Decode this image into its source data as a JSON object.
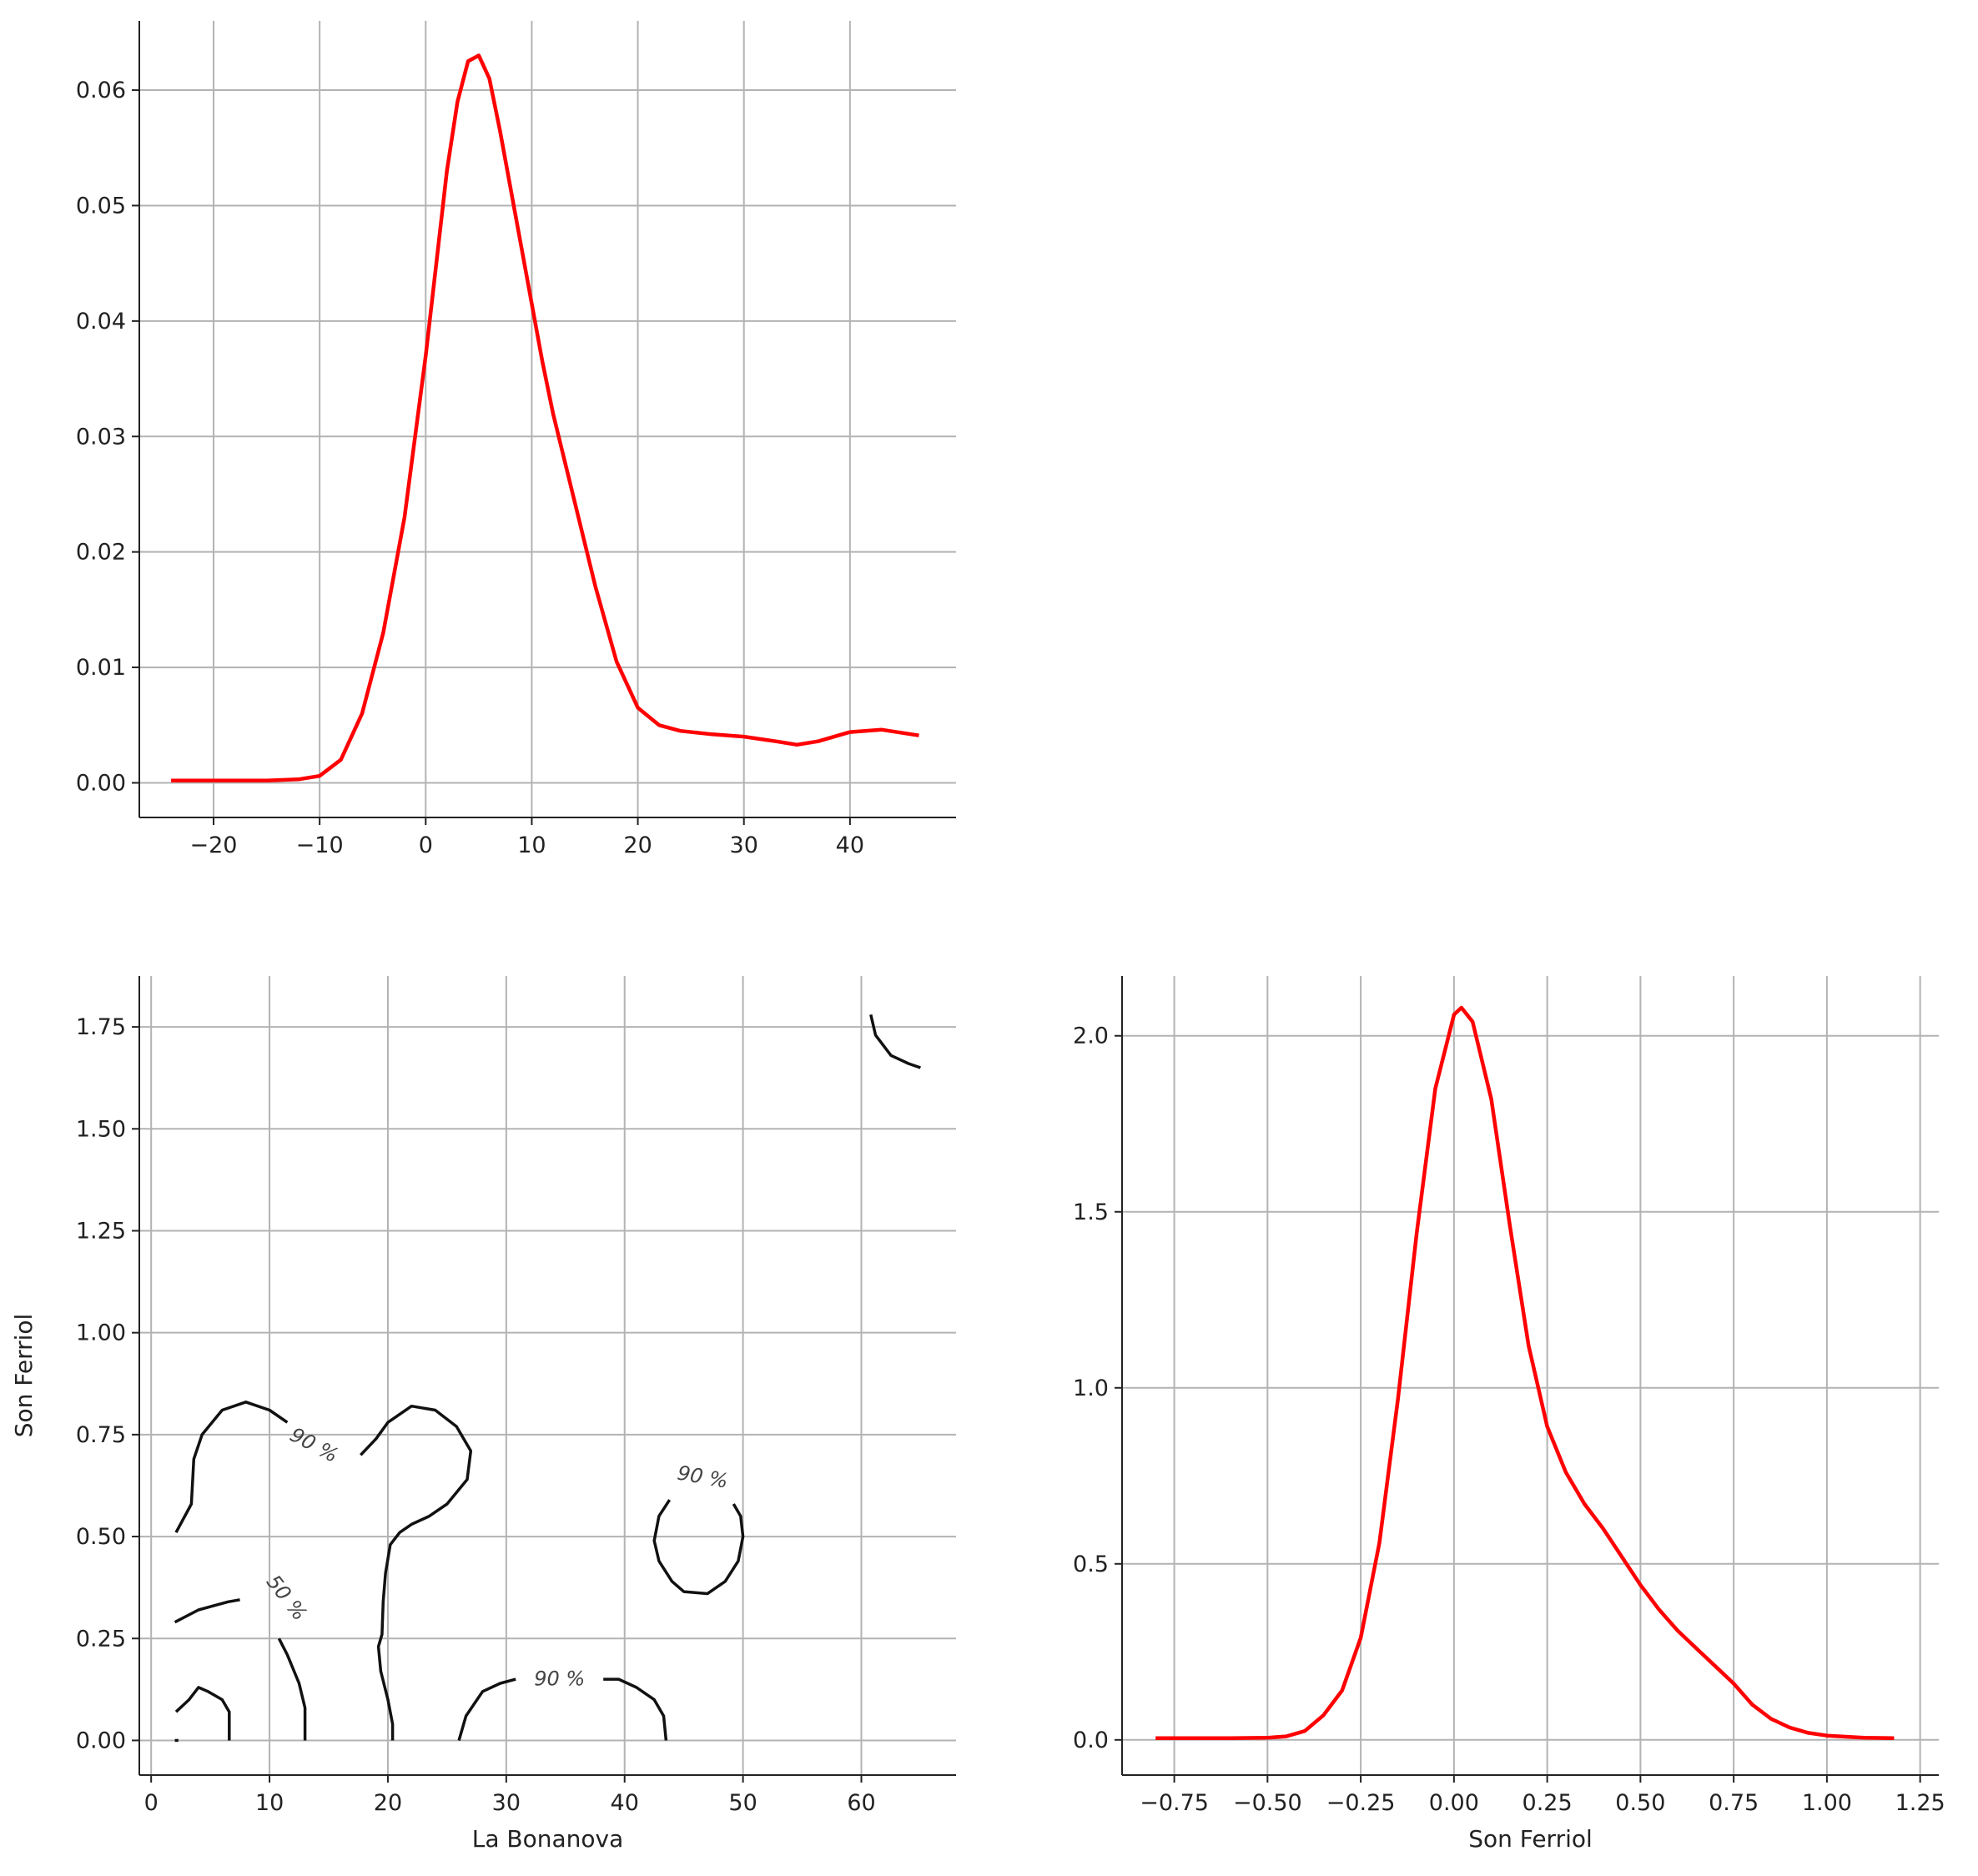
{
  "chart_data": [
    {
      "panel": "top-left",
      "type": "line",
      "title": "",
      "xlabel": "",
      "ylabel": "",
      "xlim": [
        -27,
        50
      ],
      "ylim": [
        -0.003,
        0.066
      ],
      "xticks": [
        -20,
        -10,
        0,
        10,
        20,
        30,
        40
      ],
      "yticks": [
        0.0,
        0.01,
        0.02,
        0.03,
        0.04,
        0.05,
        0.06
      ],
      "xtick_labels": [
        "−20",
        "−10",
        "0",
        "10",
        "20",
        "30",
        "40"
      ],
      "ytick_labels": [
        "0.00",
        "0.01",
        "0.02",
        "0.03",
        "0.04",
        "0.05",
        "0.06"
      ],
      "grid": true,
      "color": "#ff0000",
      "series": [
        {
          "x": [
            -24,
            -20,
            -15,
            -12,
            -10,
            -8,
            -6,
            -4,
            -2,
            0,
            1,
            2,
            3,
            4,
            5,
            6,
            7,
            8,
            9,
            10,
            11,
            12,
            14,
            16,
            18,
            20,
            22,
            24,
            27,
            30,
            33,
            35,
            37,
            40,
            43,
            46.5
          ],
          "y": [
            0.0002,
            0.0002,
            0.0002,
            0.0003,
            0.0006,
            0.002,
            0.006,
            0.013,
            0.023,
            0.037,
            0.045,
            0.053,
            0.059,
            0.0625,
            0.063,
            0.061,
            0.0565,
            0.0515,
            0.0465,
            0.0415,
            0.0365,
            0.032,
            0.0245,
            0.017,
            0.0105,
            0.0065,
            0.005,
            0.0045,
            0.0042,
            0.004,
            0.0036,
            0.0033,
            0.0036,
            0.0044,
            0.0046,
            0.0041
          ]
        }
      ]
    },
    {
      "panel": "bottom-left",
      "type": "line",
      "title": "",
      "xlabel": "La Bonanova",
      "ylabel": "Son Ferriol",
      "xlim": [
        -1,
        68
      ],
      "ylim": [
        -0.085,
        1.875
      ],
      "xticks": [
        0,
        10,
        20,
        30,
        40,
        50,
        60
      ],
      "yticks": [
        0.0,
        0.25,
        0.5,
        0.75,
        1.0,
        1.25,
        1.5,
        1.75
      ],
      "xtick_labels": [
        "0",
        "10",
        "20",
        "30",
        "40",
        "50",
        "60"
      ],
      "ytick_labels": [
        "0.00",
        "0.25",
        "0.50",
        "0.75",
        "1.00",
        "1.25",
        "1.50",
        "1.75"
      ],
      "grid": true,
      "contour_labels": [
        "90 %",
        "50 %",
        "90 %",
        "90 %"
      ],
      "contours": [
        {
          "level": "90 %",
          "points": [
            [
              2.1,
              0.51
            ],
            [
              3.4,
              0.58
            ],
            [
              3.6,
              0.69
            ],
            [
              4.3,
              0.75
            ],
            [
              6.0,
              0.81
            ],
            [
              8.0,
              0.83
            ],
            [
              10.0,
              0.81
            ],
            [
              11.5,
              0.78
            ]
          ]
        },
        {
          "level": "90 %",
          "points": [
            [
              17.7,
              0.7
            ],
            [
              19.0,
              0.74
            ],
            [
              20.0,
              0.78
            ],
            [
              22.0,
              0.82
            ],
            [
              24.0,
              0.81
            ],
            [
              25.8,
              0.77
            ],
            [
              27.0,
              0.71
            ],
            [
              26.7,
              0.64
            ],
            [
              25.0,
              0.58
            ],
            [
              23.5,
              0.55
            ],
            [
              22.0,
              0.53
            ],
            [
              21.0,
              0.51
            ],
            [
              20.2,
              0.48
            ],
            [
              19.8,
              0.41
            ],
            [
              19.6,
              0.34
            ],
            [
              19.5,
              0.26
            ],
            [
              19.2,
              0.23
            ],
            [
              19.4,
              0.17
            ],
            [
              20.0,
              0.1
            ],
            [
              20.4,
              0.04
            ],
            [
              20.4,
              0.0
            ]
          ]
        },
        {
          "level": "50 %",
          "points": [
            [
              2.0,
              0.29
            ],
            [
              4.0,
              0.32
            ],
            [
              6.5,
              0.34
            ],
            [
              7.5,
              0.345
            ]
          ]
        },
        {
          "level": "50 %",
          "points": [
            [
              10.8,
              0.25
            ],
            [
              11.5,
              0.21
            ],
            [
              12.5,
              0.14
            ],
            [
              13.0,
              0.08
            ],
            [
              13.0,
              0.0
            ]
          ]
        },
        {
          "level": "",
          "points": [
            [
              2.1,
              0.07
            ],
            [
              3.2,
              0.1
            ],
            [
              4.0,
              0.13
            ],
            [
              4.8,
              0.12
            ],
            [
              6.0,
              0.1
            ],
            [
              6.6,
              0.07
            ],
            [
              6.6,
              0.0
            ]
          ]
        },
        {
          "level": "90 %",
          "points": [
            [
              26.0,
              0.0
            ],
            [
              26.6,
              0.06
            ],
            [
              28.0,
              0.12
            ],
            [
              29.5,
              0.14
            ],
            [
              30.8,
              0.15
            ]
          ]
        },
        {
          "level": "90 %",
          "points": [
            [
              38.2,
              0.15
            ],
            [
              39.5,
              0.15
            ],
            [
              41.0,
              0.13
            ],
            [
              42.5,
              0.1
            ],
            [
              43.3,
              0.06
            ],
            [
              43.5,
              0.0
            ]
          ]
        },
        {
          "level": "90 %",
          "points": [
            [
              43.8,
              0.59
            ],
            [
              42.9,
              0.55
            ],
            [
              42.5,
              0.49
            ],
            [
              42.9,
              0.44
            ],
            [
              44.0,
              0.39
            ],
            [
              45.0,
              0.365
            ],
            [
              47.0,
              0.36
            ],
            [
              48.5,
              0.39
            ],
            [
              49.6,
              0.44
            ],
            [
              50.0,
              0.5
            ],
            [
              49.8,
              0.55
            ],
            [
              49.2,
              0.58
            ]
          ]
        },
        {
          "level": "",
          "points": [
            [
              60.8,
              1.78
            ],
            [
              61.2,
              1.73
            ],
            [
              62.5,
              1.68
            ],
            [
              64.0,
              1.66
            ],
            [
              65.0,
              1.65
            ]
          ]
        }
      ]
    },
    {
      "panel": "bottom-right",
      "type": "line",
      "title": "",
      "xlabel": "Son Ferriol",
      "ylabel": "",
      "xlim": [
        -0.89,
        1.3
      ],
      "ylim": [
        -0.1,
        2.17
      ],
      "xticks": [
        -0.75,
        -0.5,
        -0.25,
        0.0,
        0.25,
        0.5,
        0.75,
        1.0,
        1.25
      ],
      "yticks": [
        0.0,
        0.5,
        1.0,
        1.5,
        2.0
      ],
      "xtick_labels": [
        "−0.75",
        "−0.50",
        "−0.25",
        "0.00",
        "0.25",
        "0.50",
        "0.75",
        "1.00",
        "1.25"
      ],
      "ytick_labels": [
        "0.0",
        "0.5",
        "1.0",
        "1.5",
        "2.0"
      ],
      "grid": true,
      "color": "#ff0000",
      "series": [
        {
          "x": [
            -0.8,
            -0.6,
            -0.5,
            -0.45,
            -0.4,
            -0.35,
            -0.3,
            -0.25,
            -0.2,
            -0.15,
            -0.1,
            -0.05,
            0.0,
            0.02,
            0.05,
            0.1,
            0.15,
            0.2,
            0.25,
            0.3,
            0.35,
            0.4,
            0.45,
            0.5,
            0.55,
            0.6,
            0.65,
            0.7,
            0.75,
            0.8,
            0.85,
            0.9,
            0.95,
            1.0,
            1.1,
            1.18
          ],
          "y": [
            0.005,
            0.005,
            0.006,
            0.01,
            0.025,
            0.07,
            0.14,
            0.29,
            0.56,
            0.97,
            1.44,
            1.85,
            2.06,
            2.08,
            2.04,
            1.82,
            1.46,
            1.12,
            0.89,
            0.76,
            0.67,
            0.6,
            0.52,
            0.44,
            0.37,
            0.31,
            0.26,
            0.21,
            0.16,
            0.1,
            0.06,
            0.035,
            0.02,
            0.012,
            0.006,
            0.005
          ]
        }
      ]
    }
  ]
}
